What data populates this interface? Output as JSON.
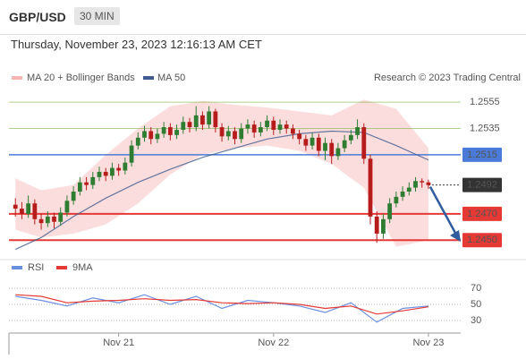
{
  "header": {
    "symbol": "GBP/USD",
    "interval": "30 MIN",
    "timestamp": "Thursday, November 23, 2023 12:16:13 AM CET"
  },
  "chart_data": [
    {
      "type": "candlestick",
      "source": "Research © 2023 Trading Central",
      "x": [
        1,
        2,
        3,
        4,
        5,
        6,
        7,
        8,
        9,
        10,
        11,
        12,
        13,
        14,
        15,
        16,
        17,
        18,
        19,
        20,
        21,
        22,
        23,
        24,
        25,
        26,
        27,
        28,
        29,
        30,
        31,
        32,
        33,
        34,
        35,
        36,
        37,
        38,
        39,
        40,
        41,
        42,
        43,
        44,
        45,
        46,
        47,
        48,
        49,
        50,
        51,
        52,
        53,
        54,
        55,
        56,
        57,
        58,
        59,
        60,
        61,
        62,
        63,
        64,
        65
      ],
      "open": [
        1.2477,
        1.2474,
        1.247,
        1.2478,
        1.2466,
        1.2463,
        1.2468,
        1.2464,
        1.2471,
        1.248,
        1.2487,
        1.2494,
        1.2492,
        1.2498,
        1.2502,
        1.2499,
        1.2505,
        1.2503,
        1.2509,
        1.2522,
        1.2528,
        1.2533,
        1.2527,
        1.2531,
        1.2536,
        1.253,
        1.2534,
        1.254,
        1.2536,
        1.2545,
        1.2538,
        1.2548,
        1.2536,
        1.2529,
        1.2533,
        1.2527,
        1.2535,
        1.2538,
        1.2532,
        1.2536,
        1.2541,
        1.2534,
        1.2538,
        1.2535,
        1.2531,
        1.2527,
        1.2522,
        1.2528,
        1.2518,
        1.2524,
        1.2514,
        1.252,
        1.2526,
        1.253,
        1.2536,
        1.2512,
        1.2468,
        1.2455,
        1.2466,
        1.2478,
        1.2483,
        1.2487,
        1.249,
        1.2495,
        1.2494
      ],
      "high": [
        1.2482,
        1.2479,
        1.2484,
        1.2481,
        1.247,
        1.2472,
        1.2471,
        1.2475,
        1.2484,
        1.2491,
        1.2498,
        1.2498,
        1.2502,
        1.2506,
        1.2505,
        1.2509,
        1.2508,
        1.2513,
        1.2526,
        1.2532,
        1.2537,
        1.2536,
        1.2535,
        1.254,
        1.2539,
        1.2538,
        1.2544,
        1.2543,
        1.2552,
        1.2548,
        1.2552,
        1.255,
        1.2539,
        1.2537,
        1.2536,
        1.2539,
        1.2542,
        1.2541,
        1.254,
        1.2545,
        1.2544,
        1.2542,
        1.2541,
        1.2538,
        1.2534,
        1.253,
        1.2532,
        1.2531,
        1.2528,
        1.2527,
        1.2524,
        1.253,
        1.2534,
        1.2542,
        1.2539,
        1.2515,
        1.2472,
        1.247,
        1.2482,
        1.2487,
        1.2491,
        1.2494,
        1.2498,
        1.2497,
        1.2496
      ],
      "low": [
        1.2468,
        1.2466,
        1.2467,
        1.2462,
        1.2458,
        1.246,
        1.2459,
        1.2461,
        1.2468,
        1.2477,
        1.2484,
        1.2488,
        1.2489,
        1.2495,
        1.2495,
        1.2496,
        1.2499,
        1.25,
        1.2506,
        1.2519,
        1.2525,
        1.2523,
        1.2524,
        1.2528,
        1.2526,
        1.2527,
        1.2531,
        1.2532,
        1.2533,
        1.2534,
        1.2535,
        1.2532,
        1.2525,
        1.2526,
        1.2523,
        1.2524,
        1.2531,
        1.2528,
        1.2529,
        1.2533,
        1.253,
        1.2531,
        1.2531,
        1.2527,
        1.2523,
        1.2518,
        1.2519,
        1.2514,
        1.2511,
        1.2508,
        1.2511,
        1.2517,
        1.2523,
        1.2527,
        1.2508,
        1.2462,
        1.2448,
        1.2451,
        1.2463,
        1.2475,
        1.248,
        1.2484,
        1.2487,
        1.249,
        1.2489
      ],
      "close": [
        1.2474,
        1.247,
        1.2478,
        1.2466,
        1.2463,
        1.2468,
        1.2464,
        1.2471,
        1.248,
        1.2487,
        1.2494,
        1.2492,
        1.2498,
        1.2502,
        1.2499,
        1.2505,
        1.2503,
        1.2509,
        1.2522,
        1.2528,
        1.2533,
        1.2527,
        1.2531,
        1.2536,
        1.253,
        1.2534,
        1.254,
        1.2536,
        1.2545,
        1.2538,
        1.2548,
        1.2536,
        1.2529,
        1.2533,
        1.2527,
        1.2535,
        1.2538,
        1.2532,
        1.2536,
        1.2541,
        1.2534,
        1.2538,
        1.2535,
        1.2531,
        1.2527,
        1.2522,
        1.2528,
        1.2518,
        1.2524,
        1.2514,
        1.252,
        1.2526,
        1.253,
        1.2536,
        1.2512,
        1.2468,
        1.2455,
        1.2466,
        1.2478,
        1.2483,
        1.2487,
        1.249,
        1.2495,
        1.2494,
        1.2492
      ],
      "up_color": "#2e7d32",
      "down_color": "#b71c1c",
      "series": [
        {
          "name": "MA 20 + Bollinger Bands",
          "color": "#f6b4b4",
          "x": [
            1,
            5,
            10,
            15,
            20,
            25,
            30,
            35,
            40,
            45,
            50,
            55,
            60,
            65
          ],
          "upper": [
            1.2497,
            1.2488,
            1.2492,
            1.2515,
            1.2535,
            1.2552,
            1.2556,
            1.2553,
            1.2551,
            1.2548,
            1.2545,
            1.2557,
            1.255,
            1.252
          ],
          "lower": [
            1.2458,
            1.2452,
            1.2455,
            1.2462,
            1.2478,
            1.25,
            1.2515,
            1.252,
            1.2522,
            1.2518,
            1.2508,
            1.249,
            1.2445,
            1.245
          ]
        },
        {
          "name": "MA 50",
          "color": "#3f5b8f",
          "x": [
            1,
            5,
            10,
            15,
            20,
            25,
            30,
            35,
            40,
            45,
            50,
            55,
            60,
            65
          ],
          "values": [
            1.2443,
            1.2452,
            1.2468,
            1.2482,
            1.2494,
            1.2504,
            1.2513,
            1.252,
            1.2527,
            1.2531,
            1.2533,
            1.2532,
            1.2522,
            1.2511
          ]
        }
      ],
      "xlim": [
        0,
        70
      ],
      "xticks": [
        {
          "value": 17,
          "label": "Nov 21"
        },
        {
          "value": 41,
          "label": "Nov 22"
        },
        {
          "value": 65,
          "label": "Nov 23"
        }
      ],
      "ylim": [
        1.2441,
        1.2565
      ],
      "yticks": [
        1.2555,
        1.2535,
        1.2515,
        1.2492,
        {
          "value": 1.247,
          "label": "1.2470"
        },
        {
          "value": 1.245,
          "label": "1.2450"
        }
      ],
      "ytick_colors": [
        "#7cb342",
        "#7cb342",
        "#4a7bd8",
        "#333333",
        "#e53935",
        "#e53935"
      ],
      "ytick_styles": [
        "thin",
        "thin",
        "line",
        "dotted",
        "thick",
        "thick"
      ]
    },
    {
      "type": "line",
      "series": [
        {
          "name": "RSI",
          "color": "#6b8fe0",
          "x": [
            1,
            5,
            9,
            13,
            17,
            21,
            25,
            29,
            33,
            37,
            41,
            45,
            49,
            53,
            57,
            61,
            65
          ],
          "values": [
            60,
            55,
            48,
            58,
            52,
            62,
            50,
            60,
            45,
            55,
            52,
            48,
            40,
            52,
            28,
            45,
            48
          ]
        },
        {
          "name": "9MA",
          "color": "#e53935",
          "x": [
            1,
            5,
            9,
            13,
            17,
            21,
            25,
            29,
            33,
            37,
            41,
            45,
            49,
            53,
            57,
            61,
            65
          ],
          "values": [
            62,
            60,
            52,
            54,
            55,
            57,
            55,
            56,
            52,
            51,
            52,
            50,
            45,
            48,
            38,
            42,
            47
          ]
        }
      ],
      "xlim": [
        0,
        70
      ],
      "ylim": [
        15,
        95
      ],
      "yticks": [
        70,
        50,
        30
      ]
    }
  ]
}
